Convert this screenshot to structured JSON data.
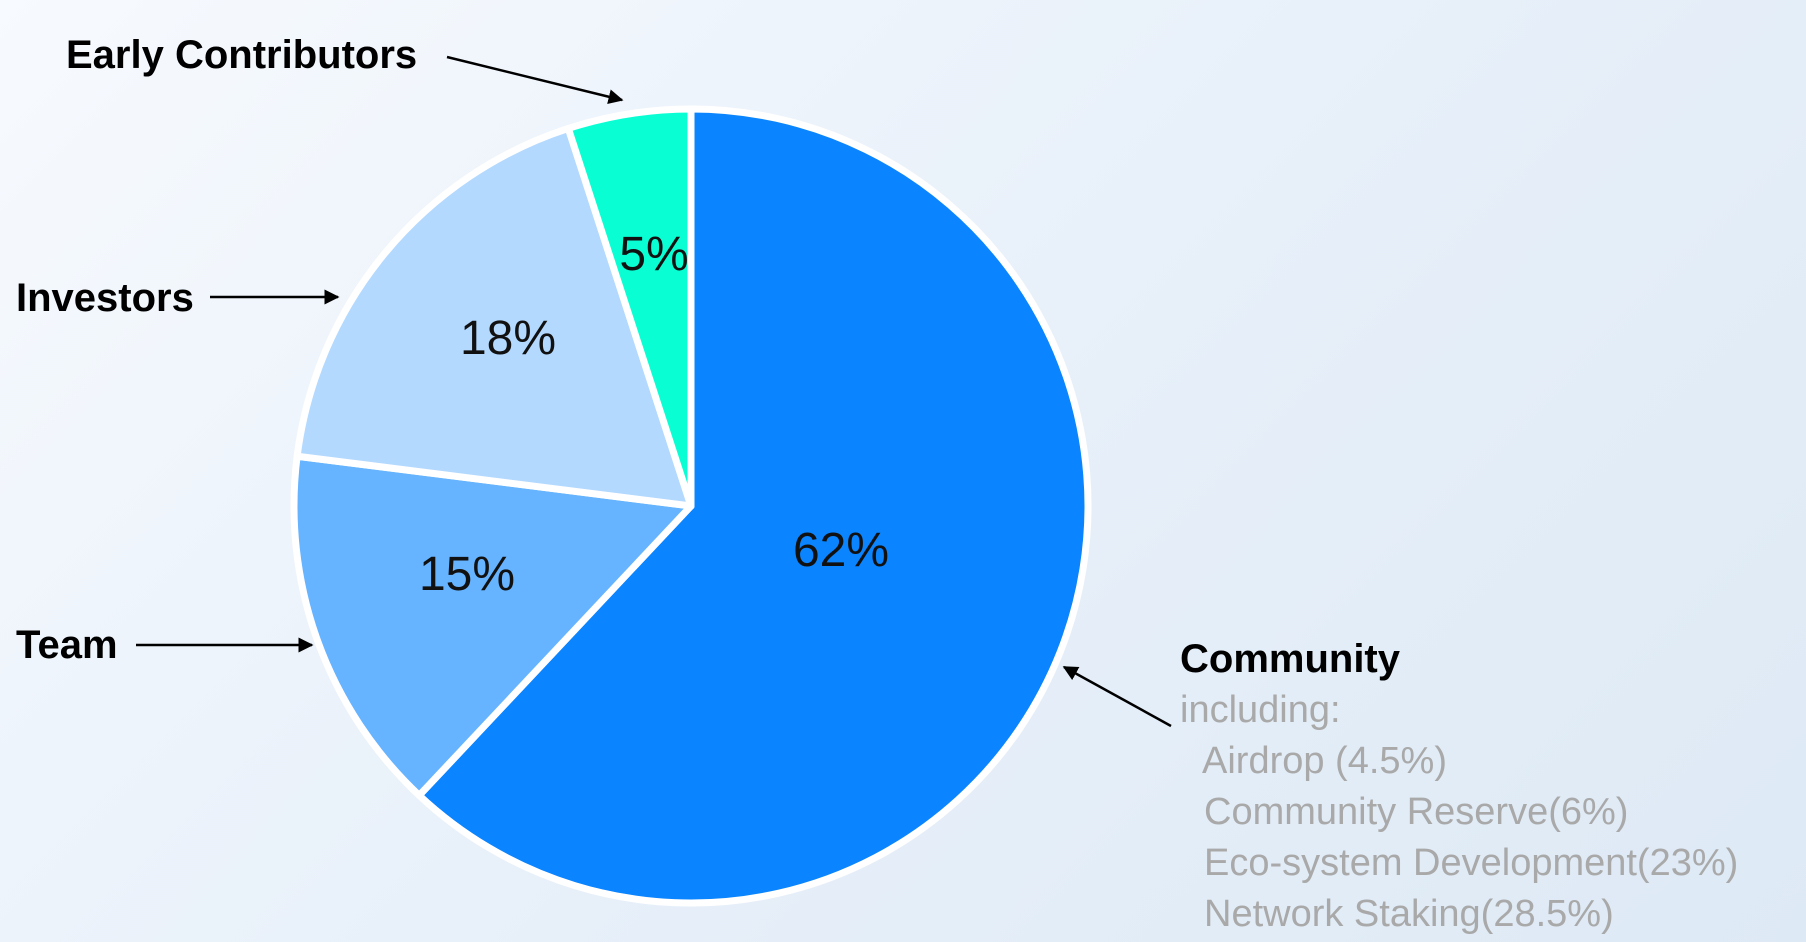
{
  "chart_data": {
    "type": "pie",
    "slices": [
      {
        "label": "Community",
        "value": 62,
        "value_label": "62%",
        "color": "#0a84ff"
      },
      {
        "label": "Team",
        "value": 15,
        "value_label": "15%",
        "color": "#66b3ff"
      },
      {
        "label": "Investors",
        "value": 18,
        "value_label": "18%",
        "color": "#b3d9ff"
      },
      {
        "label": "Early Contributors",
        "value": 5,
        "value_label": "5%",
        "color": "#0afed4"
      }
    ],
    "start": "12 o'clock",
    "direction": "clockwise",
    "community_breakdown": {
      "heading": "including:",
      "items": [
        "Airdrop (4.5%)",
        "Community Reserve(6%)",
        "Eco-system Development(23%)",
        "Network Staking(28.5%)"
      ]
    }
  }
}
